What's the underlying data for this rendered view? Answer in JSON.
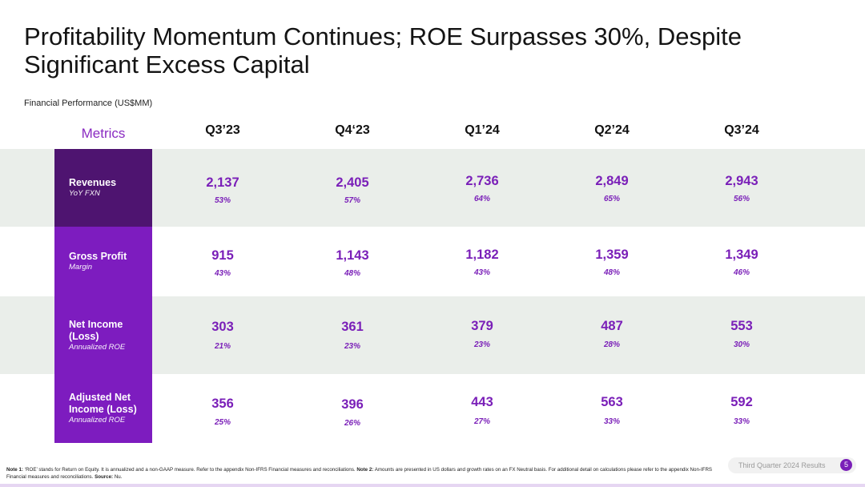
{
  "title": "Profitability Momentum Continues; ROE Surpasses 30%, Despite Significant Excess Capital",
  "subtitle": "Financial Performance (US$MM)",
  "table": {
    "metrics_header": "Metrics",
    "columns": [
      "Q3’23",
      "Q4‘23",
      "Q1’24",
      "Q2’24",
      "Q3’24"
    ],
    "rows": [
      {
        "name": "Revenues",
        "sub": "YoY FXN",
        "values": [
          "2,137",
          "2,405",
          "2,736",
          "2,849",
          "2,943"
        ],
        "percents": [
          "53%",
          "57%",
          "64%",
          "65%",
          "56%"
        ]
      },
      {
        "name": "Gross Profit",
        "sub": "Margin",
        "values": [
          "915",
          "1,143",
          "1,182",
          "1,359",
          "1,349"
        ],
        "percents": [
          "43%",
          "48%",
          "43%",
          "48%",
          "46%"
        ]
      },
      {
        "name": "Net Income (Loss)",
        "sub": "Annualized ROE",
        "values": [
          "303",
          "361",
          "379",
          "487",
          "553"
        ],
        "percents": [
          "21%",
          "23%",
          "23%",
          "28%",
          "30%"
        ]
      },
      {
        "name": "Adjusted Net Income (Loss)",
        "sub": "Annualized ROE",
        "values": [
          "356",
          "396",
          "443",
          "563",
          "592"
        ],
        "percents": [
          "25%",
          "26%",
          "27%",
          "33%",
          "33%"
        ]
      }
    ]
  },
  "footnote": {
    "note1_label": "Note 1:",
    "note1_text": " ‘ROE’ stands for Return on Equity. It is annualized and a non-GAAP measure. Refer to the appendix Non-IFRS Financial measures and reconciliations. ",
    "note2_label": "Note 2:",
    "note2_text": " Amounts are presented in US dollars and growth rates on an FX Neutral basis. For additional detail on calculations please refer to the appendix Non-IFRS Financial measures and reconciliations. ",
    "source_label": "Source:",
    "source_text": " Nu."
  },
  "footer": {
    "label": "Third Quarter 2024 Results",
    "page": "5"
  },
  "colors": {
    "accent": "#7a1fb8",
    "metric_bg_dark": "#4e1470",
    "metric_bg": "#7d1cbf",
    "band_shade": "#eaeeea"
  }
}
